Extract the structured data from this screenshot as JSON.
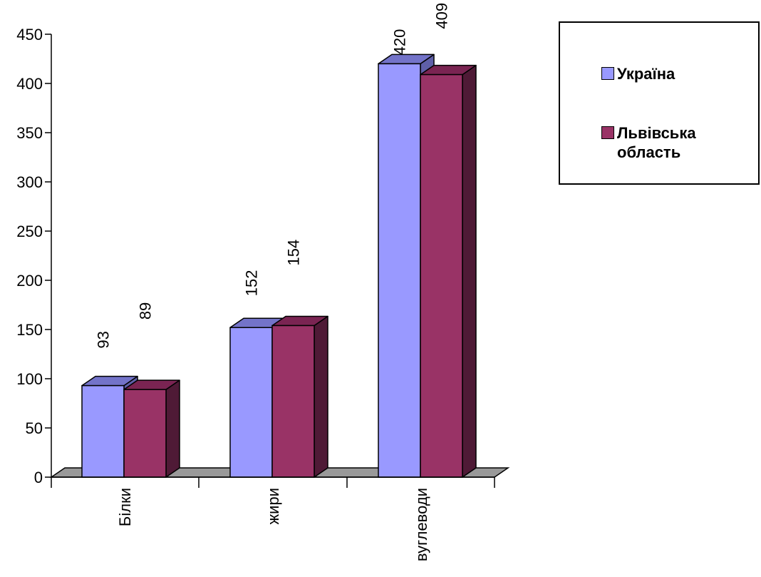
{
  "chart_data": {
    "type": "bar",
    "style": "3d-clustered-column",
    "categories": [
      "Білки",
      "жири",
      "вуглеводи"
    ],
    "series": [
      {
        "name": "Україна",
        "values": [
          93,
          152,
          420
        ],
        "color": "#9999FF",
        "top_color": "#7373C9",
        "side_color": "#5F5FA8"
      },
      {
        "name": "Львівська область",
        "values": [
          89,
          154,
          409
        ],
        "color": "#993366",
        "top_color": "#7A2452",
        "side_color": "#4F1A36"
      }
    ],
    "data_labels": {
      "Україна": [
        "93",
        "152",
        "420"
      ],
      "Львівська область": [
        "89",
        "154",
        "409"
      ]
    },
    "y_ticks": [
      "0",
      "50",
      "100",
      "150",
      "200",
      "250",
      "300",
      "350",
      "400",
      "450"
    ],
    "ylim": [
      0,
      450
    ],
    "grid": false,
    "floor_color": "#999999",
    "legend": {
      "position": "right",
      "entries": [
        "Україна",
        "Львівська область"
      ]
    },
    "title": "",
    "xlabel": "",
    "ylabel": ""
  }
}
